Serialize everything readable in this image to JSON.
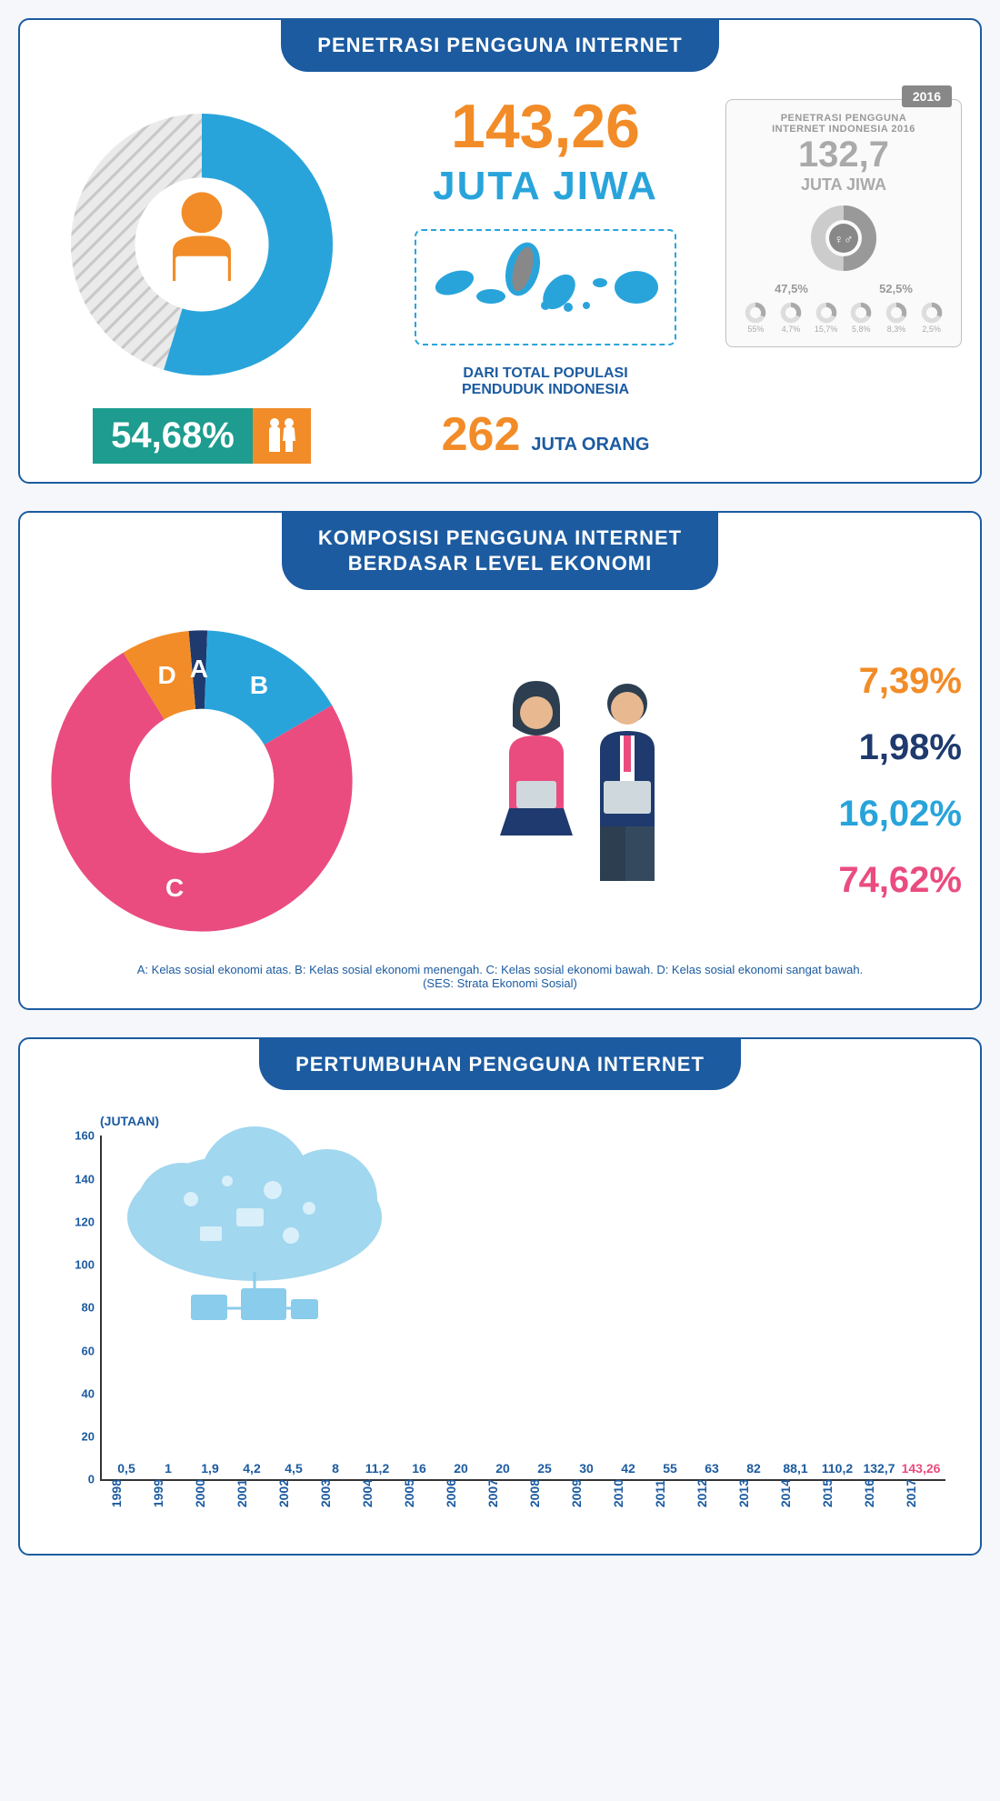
{
  "colors": {
    "blue_dark": "#1c5ba0",
    "blue_light": "#29a4db",
    "orange": "#f28c28",
    "teal": "#1d9c8f",
    "pink": "#ea4c7f",
    "navy": "#1e3a6e",
    "grey": "#b8b8b8"
  },
  "section1": {
    "title": "PENETRASI PENGGUNA INTERNET",
    "donut": {
      "percent": 54.68,
      "fill_color": "#29a4db",
      "track_color": "#d8d8d8",
      "display": "54,68%"
    },
    "big_number": "143,26",
    "big_number_unit": "JUTA JIWA",
    "pop_label": "DARI TOTAL POPULASI\nPENDUDUK INDONESIA",
    "pop_number": "262",
    "pop_unit": "JUTA ORANG",
    "prev": {
      "year": "2016",
      "title": "PENETRASI PENGGUNA\nINTERNET INDONESIA 2016",
      "number": "132,7",
      "unit": "JUTA JIWA",
      "gender": [
        {
          "label": "47,5%",
          "value": 47.5
        },
        {
          "label": "52,5%",
          "value": 52.5
        }
      ],
      "mini": [
        {
          "label": "55%"
        },
        {
          "label": "4,7%"
        },
        {
          "label": "15,7%"
        },
        {
          "label": "5,8%"
        },
        {
          "label": "8,3%"
        },
        {
          "label": "2,5%"
        }
      ]
    }
  },
  "section2": {
    "title": "KOMPOSISI PENGGUNA INTERNET\nBERDASAR LEVEL EKONOMI",
    "segments": [
      {
        "key": "A",
        "value": 1.98,
        "color": "#1e3a6e",
        "display": "1,98%"
      },
      {
        "key": "B",
        "value": 16.02,
        "color": "#29a4db",
        "display": "16,02%"
      },
      {
        "key": "C",
        "value": 74.62,
        "color": "#ea4c7f",
        "display": "74,62%"
      },
      {
        "key": "D",
        "value": 7.39,
        "color": "#f28c28",
        "display": "7,39%"
      }
    ],
    "right_order": [
      "D",
      "A",
      "B",
      "C"
    ],
    "legend": "A: Kelas sosial ekonomi atas. B: Kelas sosial ekonomi menengah. C: Kelas sosial ekonomi bawah. D: Kelas sosial ekonomi sangat bawah.\n(SES: Strata Ekonomi Sosial)"
  },
  "section3": {
    "title": "PERTUMBUHAN PENGGUNA INTERNET",
    "y_unit": "(JUTAAN)",
    "ylim": [
      0,
      160
    ],
    "ytick_step": 20,
    "bar_color": "#29a4db",
    "highlight_color": "#ea4c7f",
    "highlight_year": "2017",
    "bars": [
      {
        "year": "1998",
        "value": 0.5,
        "label": "0,5"
      },
      {
        "year": "1999",
        "value": 1,
        "label": "1"
      },
      {
        "year": "2000",
        "value": 1.9,
        "label": "1,9"
      },
      {
        "year": "2001",
        "value": 4.2,
        "label": "4,2"
      },
      {
        "year": "2002",
        "value": 4.5,
        "label": "4,5"
      },
      {
        "year": "2003",
        "value": 8,
        "label": "8"
      },
      {
        "year": "2004",
        "value": 11.2,
        "label": "11,2"
      },
      {
        "year": "2005",
        "value": 16,
        "label": "16"
      },
      {
        "year": "2006",
        "value": 20,
        "label": "20"
      },
      {
        "year": "2007",
        "value": 20,
        "label": "20"
      },
      {
        "year": "2008",
        "value": 25,
        "label": "25"
      },
      {
        "year": "2009",
        "value": 30,
        "label": "30"
      },
      {
        "year": "2010",
        "value": 42,
        "label": "42"
      },
      {
        "year": "2011",
        "value": 55,
        "label": "55"
      },
      {
        "year": "2012",
        "value": 63,
        "label": "63"
      },
      {
        "year": "2013",
        "value": 82,
        "label": "82"
      },
      {
        "year": "2014",
        "value": 88.1,
        "label": "88,1"
      },
      {
        "year": "2015",
        "value": 110.2,
        "label": "110,2"
      },
      {
        "year": "2016",
        "value": 132.7,
        "label": "132,7"
      },
      {
        "year": "2017",
        "value": 143.26,
        "label": "143,26"
      }
    ]
  }
}
